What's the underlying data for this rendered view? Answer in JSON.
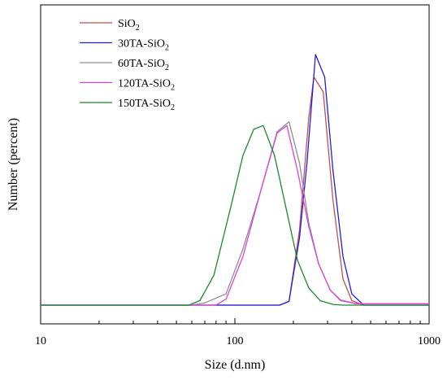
{
  "chart_data": {
    "type": "line",
    "title": "",
    "xlabel": "Size (d.nm)",
    "ylabel": "Number (percent)",
    "xscale": "log",
    "xlim": [
      10,
      1000
    ],
    "ylim": [
      0,
      35
    ],
    "x_ticks": [
      "10",
      "100",
      "1000"
    ],
    "y_ticks_shown": false,
    "grid": false,
    "legend_position": "top-left",
    "series": [
      {
        "name_main": "SiO",
        "name_sub": "2",
        "name_tail": "",
        "color": "#c0504d",
        "x": [
          10,
          170,
          190,
          215,
          240,
          255,
          285,
          320,
          360,
          400,
          460,
          1000
        ],
        "y": [
          0,
          0,
          0.5,
          10,
          25,
          30.5,
          28.5,
          14,
          3.5,
          0.6,
          0,
          0
        ]
      },
      {
        "name_main": "30TA-SiO",
        "name_sub": "2",
        "name_tail": "",
        "color": "#1f1fe0",
        "x": [
          10,
          170,
          190,
          215,
          235,
          260,
          290,
          320,
          360,
          400,
          460,
          1000
        ],
        "y": [
          0,
          0,
          0.5,
          9,
          19,
          33.5,
          30.5,
          18,
          6.5,
          1.5,
          0,
          0
        ]
      },
      {
        "name_main": "60TA-SiO",
        "name_sub": "2",
        "name_tail": "",
        "color": "#909090",
        "x": [
          10,
          60,
          70,
          90,
          110,
          135,
          165,
          190,
          215,
          240,
          270,
          310,
          350,
          420,
          1000
        ],
        "y": [
          0,
          0,
          0.3,
          1.5,
          7.5,
          15,
          23.2,
          24.5,
          19,
          11,
          5.5,
          2,
          0.6,
          0.2,
          0.2
        ]
      },
      {
        "name_main": "120TA-SiO",
        "name_sub": "2",
        "name_tail": "",
        "color": "#e040e0",
        "x": [
          10,
          80,
          90,
          110,
          135,
          165,
          185,
          210,
          240,
          270,
          310,
          350,
          420,
          1000
        ],
        "y": [
          0,
          0,
          0.8,
          6.5,
          15,
          23,
          24,
          18,
          10.5,
          5.5,
          2,
          0.7,
          0.2,
          0.2
        ]
      },
      {
        "name_main": "150TA-SiO",
        "name_sub": "2",
        "name_tail": "",
        "color": "#1a8a2a",
        "x": [
          10,
          58,
          66,
          78,
          95,
          110,
          125,
          140,
          160,
          185,
          210,
          240,
          275,
          320,
          360,
          1000
        ],
        "y": [
          0,
          0,
          0.6,
          4,
          13,
          20,
          23.5,
          24,
          20,
          12.5,
          6,
          2.3,
          0.6,
          0.1,
          0,
          0
        ]
      }
    ]
  }
}
